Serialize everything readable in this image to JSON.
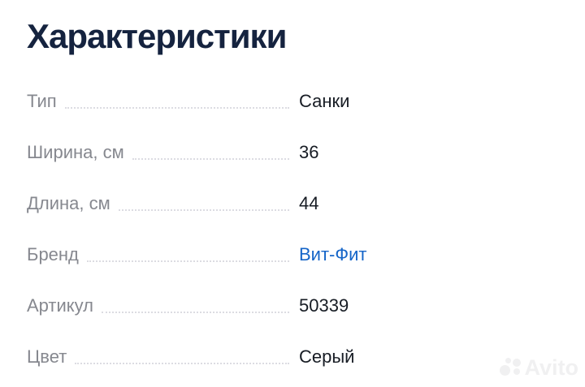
{
  "page": {
    "title": "Характеристики"
  },
  "rows": [
    {
      "label": "Тип",
      "value": "Санки"
    },
    {
      "label": "Ширина, см",
      "value": "36"
    },
    {
      "label": "Длина, см",
      "value": "44"
    },
    {
      "label": "Бренд",
      "value": "Вит-Фит",
      "link": true
    },
    {
      "label": "Артикул",
      "value": "50339"
    },
    {
      "label": "Цвет",
      "value": "Серый"
    }
  ],
  "watermark": {
    "text": "Avito"
  },
  "colors": {
    "title_text": "#15233f",
    "label_text": "#86888f",
    "value_text": "#171c24",
    "link_blue": "#1565c8",
    "leader_gray": "#dcdce2",
    "watermark_gray": "#f0f0f1",
    "background": "#ffffff"
  }
}
